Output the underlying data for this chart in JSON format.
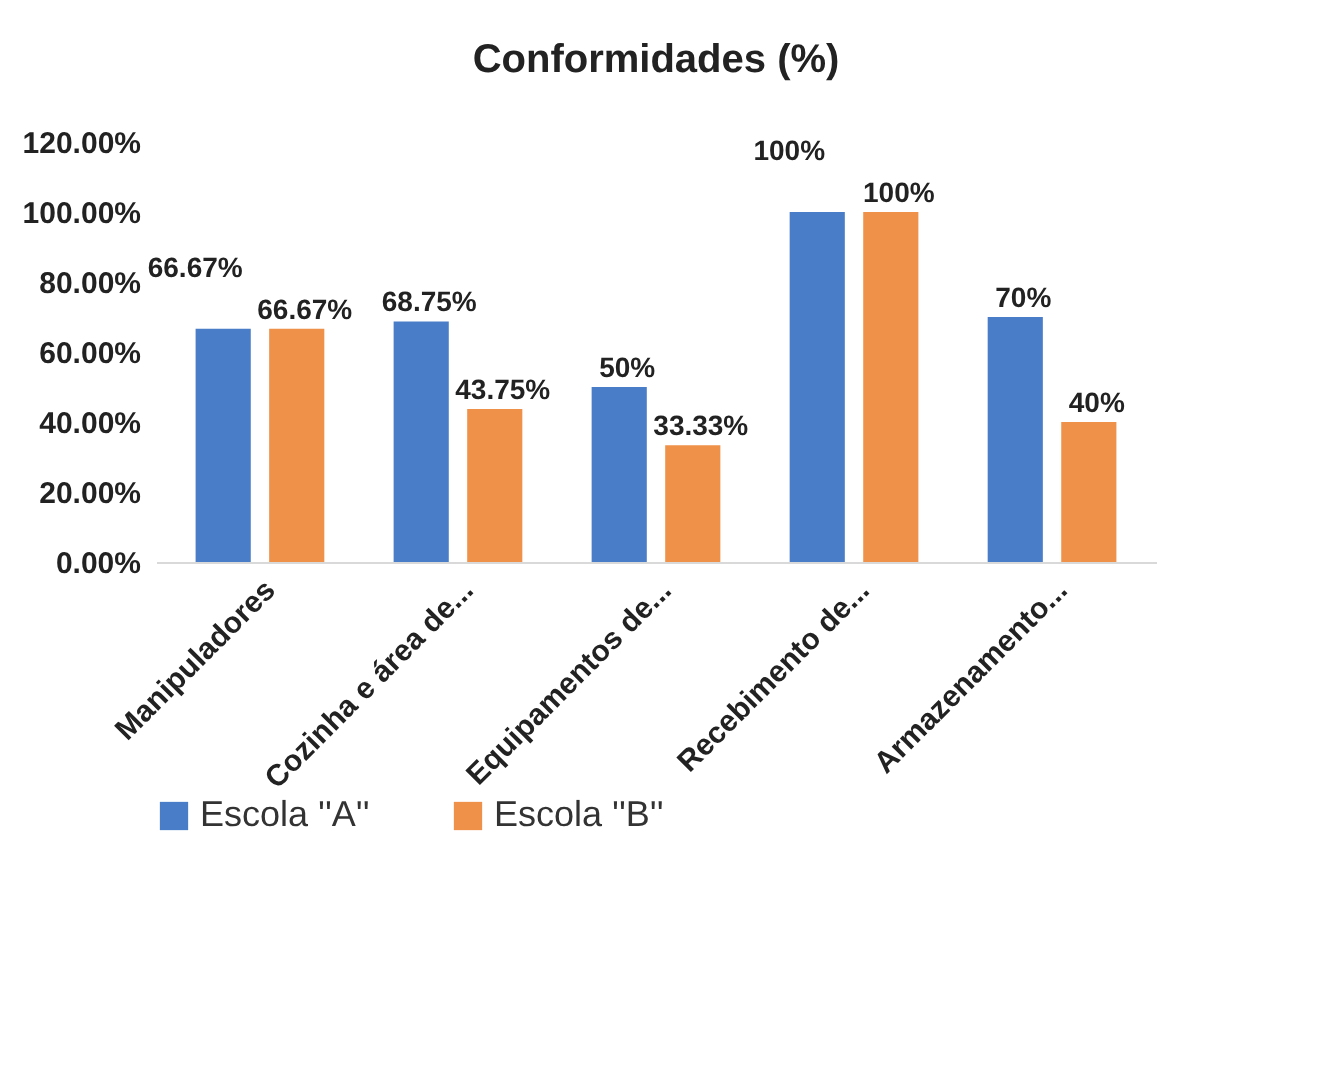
{
  "chart_data": {
    "type": "bar",
    "title": "Conformidades (%)",
    "categories": [
      "Manipuladores",
      "Cozinha e área de...",
      "Equipamentos de...",
      "Recebimento de...",
      "Armazenamento..."
    ],
    "series": [
      {
        "name": "Escola ''A''",
        "color": "#4a7dc8",
        "values": [
          66.67,
          68.75,
          50,
          100,
          70
        ],
        "value_labels": [
          "66.67%",
          "68.75%",
          "50%",
          "100%",
          "70%"
        ]
      },
      {
        "name": "Escola ''B''",
        "color": "#f0914a",
        "values": [
          66.67,
          43.75,
          33.33,
          100,
          40
        ],
        "value_labels": [
          "66.67%",
          "43.75%",
          "33.33%",
          "100%",
          "40%"
        ]
      }
    ],
    "ylim": [
      0,
      120
    ],
    "yticks": [
      {
        "value": 0,
        "label": "0.00%"
      },
      {
        "value": 20,
        "label": "20.00%"
      },
      {
        "value": 40,
        "label": "40.00%"
      },
      {
        "value": 60,
        "label": "60.00%"
      },
      {
        "value": 80,
        "label": "80.00%"
      },
      {
        "value": 100,
        "label": "100.00%"
      },
      {
        "value": 120,
        "label": "120.00%"
      }
    ],
    "grid": false,
    "legend": "bottom"
  }
}
